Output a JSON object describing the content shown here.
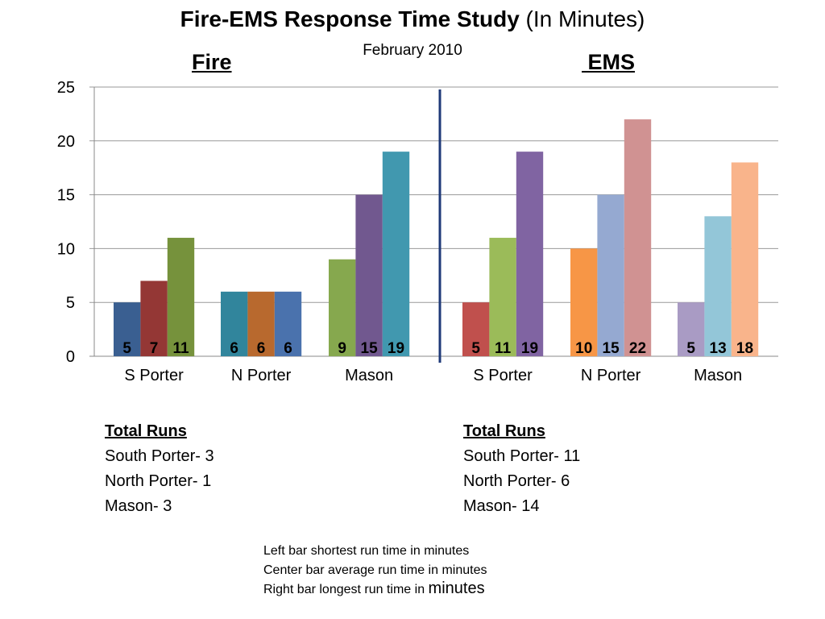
{
  "title": {
    "bold": "Fire-EMS Response Time Study",
    "normal": " (In Minutes)"
  },
  "subtitle": "February 2010",
  "group_titles": {
    "fire": "Fire",
    "ems": " EMS"
  },
  "total_runs": {
    "fire": {
      "heading": "Total Runs",
      "lines": [
        "South Porter- 3",
        "North Porter- 1",
        "Mason- 3"
      ]
    },
    "ems": {
      "heading": "Total Runs",
      "lines": [
        "South Porter- 11",
        "North Porter- 6",
        "Mason-  14"
      ]
    }
  },
  "legend_note": {
    "line1": "Left bar shortest run time in minutes",
    "line2": "Center bar average run time in minutes",
    "line3_prefix": "Right bar longest run time in ",
    "line3_suffix": "minutes"
  },
  "chart_data": {
    "type": "bar",
    "ylim": [
      0,
      25
    ],
    "yticks": [
      0,
      5,
      10,
      15,
      20,
      25
    ],
    "grid": true,
    "divider_color": "#1F3A78",
    "groups": [
      {
        "section": "Fire",
        "category": "S Porter",
        "bars": [
          {
            "series": "shortest",
            "value": 5,
            "label": "5",
            "color": "#3A5F91"
          },
          {
            "series": "average",
            "value": 7,
            "label": "7",
            "color": "#943735"
          },
          {
            "series": "longest",
            "value": 11,
            "label": "11",
            "color": "#76923C"
          }
        ]
      },
      {
        "section": "Fire",
        "category": "N Porter",
        "bars": [
          {
            "series": "shortest",
            "value": 6,
            "label": "6",
            "color": "#31859C"
          },
          {
            "series": "average",
            "value": 6,
            "label": "6",
            "color": "#B8692E"
          },
          {
            "series": "longest",
            "value": 6,
            "label": "6",
            "color": "#4A72AD"
          }
        ]
      },
      {
        "section": "Fire",
        "category": "Mason",
        "bars": [
          {
            "series": "shortest",
            "value": 9,
            "label": "9",
            "color": "#86A84E"
          },
          {
            "series": "average",
            "value": 15,
            "label": "15",
            "color": "#71588F"
          },
          {
            "series": "longest",
            "value": 19,
            "label": "19",
            "color": "#4198AF"
          }
        ]
      },
      {
        "section": "EMS",
        "category": "S Porter",
        "bars": [
          {
            "series": "shortest",
            "value": 5,
            "label": "5",
            "color": "#C0504D"
          },
          {
            "series": "average",
            "value": 11,
            "label": "11",
            "color": "#9BBB59"
          },
          {
            "series": "longest",
            "value": 19,
            "label": "19",
            "color": "#8064A2"
          }
        ]
      },
      {
        "section": "EMS",
        "category": "N Porter",
        "bars": [
          {
            "series": "shortest",
            "value": 10,
            "label": "10",
            "color": "#F79646"
          },
          {
            "series": "average",
            "value": 15,
            "label": "15",
            "color": "#95A9D1"
          },
          {
            "series": "longest",
            "value": 22,
            "label": "22",
            "color": "#D09292"
          }
        ]
      },
      {
        "section": "EMS",
        "category": "Mason",
        "bars": [
          {
            "series": "shortest",
            "value": 5,
            "label": "5",
            "color": "#A99BC4"
          },
          {
            "series": "average",
            "value": 13,
            "label": "13",
            "color": "#93C6D8"
          },
          {
            "series": "longest",
            "value": 18,
            "label": "18",
            "color": "#F9B48B"
          }
        ]
      }
    ]
  }
}
